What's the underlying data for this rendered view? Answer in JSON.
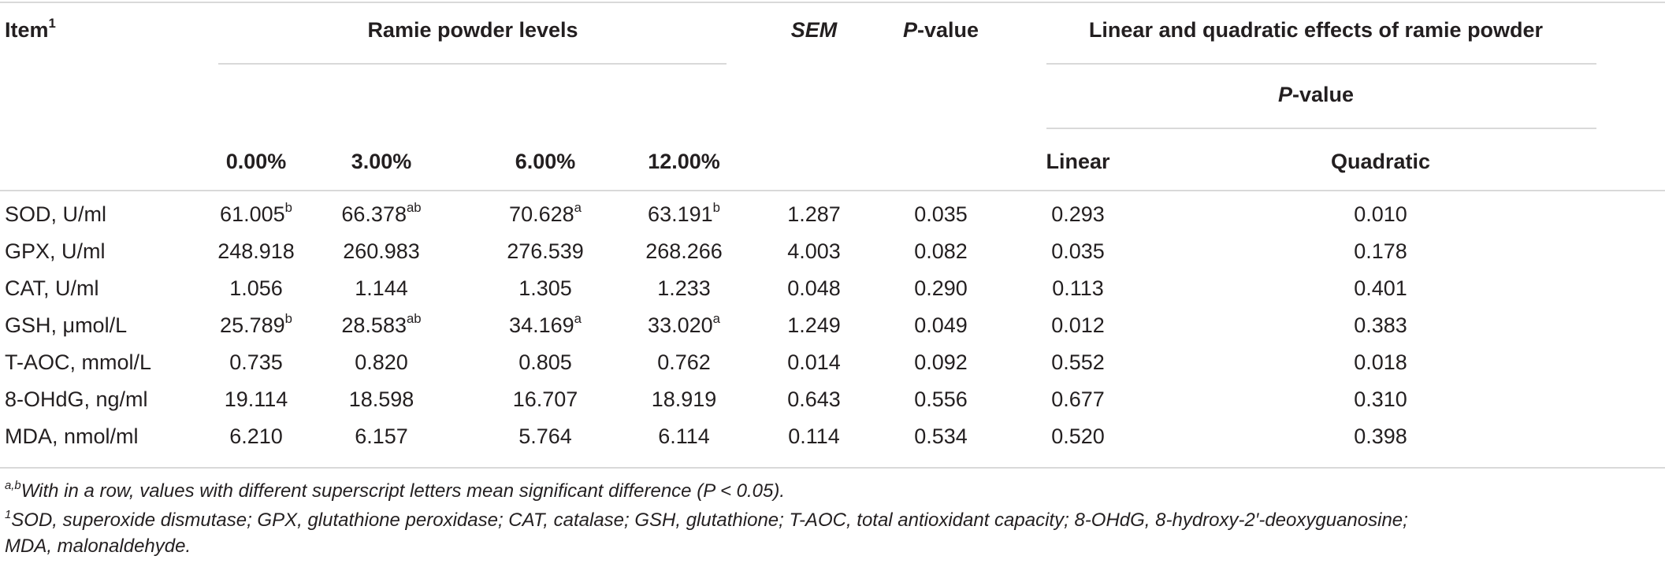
{
  "header": {
    "item_label": "Item",
    "item_sup": "1",
    "group_label": "Ramie powder levels",
    "sem_label": "SEM",
    "p_label_p": "P",
    "p_label_rest": "-value",
    "effects_label": "Linear and quadratic effects of ramie powder",
    "effects_p_p": "P",
    "effects_p_rest": "-value",
    "levels": [
      "0.00%",
      "3.00%",
      "6.00%",
      "12.00%"
    ],
    "linear_label": "Linear",
    "quadratic_label": "Quadratic"
  },
  "rows": [
    {
      "item": "SOD, U/ml",
      "v": [
        [
          "61.005",
          "b"
        ],
        [
          "66.378",
          "ab"
        ],
        [
          "70.628",
          "a"
        ],
        [
          "63.191",
          "b"
        ]
      ],
      "sem": "1.287",
      "p": "0.035",
      "linear": "0.293",
      "quadratic": "0.010"
    },
    {
      "item": "GPX, U/ml",
      "v": [
        [
          "248.918",
          ""
        ],
        [
          "260.983",
          ""
        ],
        [
          "276.539",
          ""
        ],
        [
          "268.266",
          ""
        ]
      ],
      "sem": "4.003",
      "p": "0.082",
      "linear": "0.035",
      "quadratic": "0.178"
    },
    {
      "item": "CAT, U/ml",
      "v": [
        [
          "1.056",
          ""
        ],
        [
          "1.144",
          ""
        ],
        [
          "1.305",
          ""
        ],
        [
          "1.233",
          ""
        ]
      ],
      "sem": "0.048",
      "p": "0.290",
      "linear": "0.113",
      "quadratic": "0.401"
    },
    {
      "item": "GSH, μmol/L",
      "v": [
        [
          "25.789",
          "b"
        ],
        [
          "28.583",
          "ab"
        ],
        [
          "34.169",
          "a"
        ],
        [
          "33.020",
          "a"
        ]
      ],
      "sem": "1.249",
      "p": "0.049",
      "linear": "0.012",
      "quadratic": "0.383"
    },
    {
      "item": "T-AOC, mmol/L",
      "v": [
        [
          "0.735",
          ""
        ],
        [
          "0.820",
          ""
        ],
        [
          "0.805",
          ""
        ],
        [
          "0.762",
          ""
        ]
      ],
      "sem": "0.014",
      "p": "0.092",
      "linear": "0.552",
      "quadratic": "0.018"
    },
    {
      "item": "8-OHdG, ng/ml",
      "v": [
        [
          "19.114",
          ""
        ],
        [
          "18.598",
          ""
        ],
        [
          "16.707",
          ""
        ],
        [
          "18.919",
          ""
        ]
      ],
      "sem": "0.643",
      "p": "0.556",
      "linear": "0.677",
      "quadratic": "0.310"
    },
    {
      "item": "MDA, nmol/ml",
      "v": [
        [
          "6.210",
          ""
        ],
        [
          "6.157",
          ""
        ],
        [
          "5.764",
          ""
        ],
        [
          "6.114",
          ""
        ]
      ],
      "sem": "0.114",
      "p": "0.534",
      "linear": "0.520",
      "quadratic": "0.398"
    }
  ],
  "footnotes": {
    "note1_sup": "a,b",
    "note1_text": "With in a row, values with different superscript letters mean significant difference (P < 0.05).",
    "note2_sup": "1",
    "note2_line1": "SOD, superoxide dismutase; GPX, glutathione peroxidase; CAT, catalase; GSH, glutathione; T-AOC, total antioxidant capacity; 8-OHdG, 8-hydroxy-2′-deoxyguanosine;",
    "note2_line2": "MDA, malonaldehyde."
  }
}
